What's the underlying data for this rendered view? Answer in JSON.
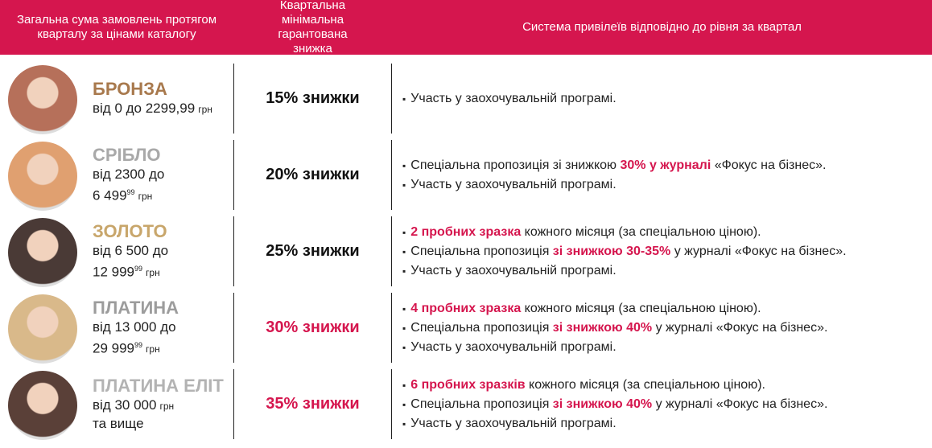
{
  "header": {
    "columns": [
      "Загальна сума замовлень протягом кварталу за цінами каталогу",
      "Квартальна мінімальна гарантована знижка",
      "Система привілеїв відповідно до рівня за квартал"
    ],
    "background": "#d5164e"
  },
  "table": {
    "highlight_color": "#d5164e",
    "rows": [
      {
        "level": "БРОНЗА",
        "level_color": "#a8794d",
        "range": [
          {
            "text": "від 0 до 2299,99",
            "unit": "грн"
          }
        ],
        "discount": "15% знижки",
        "discount_color": "#111111",
        "benefits": [
          [
            {
              "text": "Участь у заохочувальній програмі."
            }
          ]
        ]
      },
      {
        "level": "СРІБЛО",
        "level_color": "#a9a9a9",
        "range": [
          {
            "text": "від 2300 до"
          },
          {
            "text": "6 499",
            "sup": "99",
            "unit": "грн"
          }
        ],
        "discount": "20% знижки",
        "discount_color": "#111111",
        "benefits": [
          [
            {
              "text": "Спеціальна пропозиція зі знижкою "
            },
            {
              "em": "30% у журналі"
            },
            {
              "text": " «Фокус на бізнес»."
            }
          ],
          [
            {
              "text": "Участь у заохочувальній програмі."
            }
          ]
        ]
      },
      {
        "level": "ЗОЛОТО",
        "level_color": "#c8a66b",
        "range": [
          {
            "text": "від 6 500 до"
          },
          {
            "text": "12 999",
            "sup": "99",
            "unit": "грн"
          }
        ],
        "discount": "25% знижки",
        "discount_color": "#111111",
        "benefits": [
          [
            {
              "em": "2 пробних зразка"
            },
            {
              "text": " кожного місяця (за спеціальною ціною)."
            }
          ],
          [
            {
              "text": "Спеціальна пропозиція "
            },
            {
              "em": "зі знижкою 30-35%"
            },
            {
              "text": " у журналі «Фокус на бізнес»."
            }
          ],
          [
            {
              "text": "Участь у заохочувальній програмі."
            }
          ]
        ]
      },
      {
        "level": "ПЛАТИНА",
        "level_color": "#9c9c9c",
        "range": [
          {
            "text": "від 13 000 до"
          },
          {
            "text": "29 999",
            "sup": "99",
            "unit": "грн"
          }
        ],
        "discount": "30% знижки",
        "discount_color": "#d5164e",
        "benefits": [
          [
            {
              "em": "4 пробних зразка"
            },
            {
              "text": " кожного місяця (за спеціальною ціною)."
            }
          ],
          [
            {
              "text": "Спеціальна пропозиція "
            },
            {
              "em": "зі знижкою 40%"
            },
            {
              "text": " у журналі «Фокус на бізнес»."
            }
          ],
          [
            {
              "text": "Участь у заохочувальній програмі."
            }
          ]
        ]
      },
      {
        "level": "ПЛАТИНА ЕЛІТ",
        "level_color": "#b3b3b3",
        "range": [
          {
            "text": "від 30 000",
            "unit": "грн"
          },
          {
            "text": "та вище"
          }
        ],
        "discount": "35% знижки",
        "discount_color": "#d5164e",
        "benefits": [
          [
            {
              "em": "6 пробних зразків"
            },
            {
              "text": " кожного місяця (за спеціальною ціною)."
            }
          ],
          [
            {
              "text": "Спеціальна пропозиція "
            },
            {
              "em": "зі знижкою 40%"
            },
            {
              "text": " у журналі «Фокус на бізнес»."
            }
          ],
          [
            {
              "text": "Участь у заохочувальній програмі."
            }
          ]
        ]
      }
    ]
  }
}
